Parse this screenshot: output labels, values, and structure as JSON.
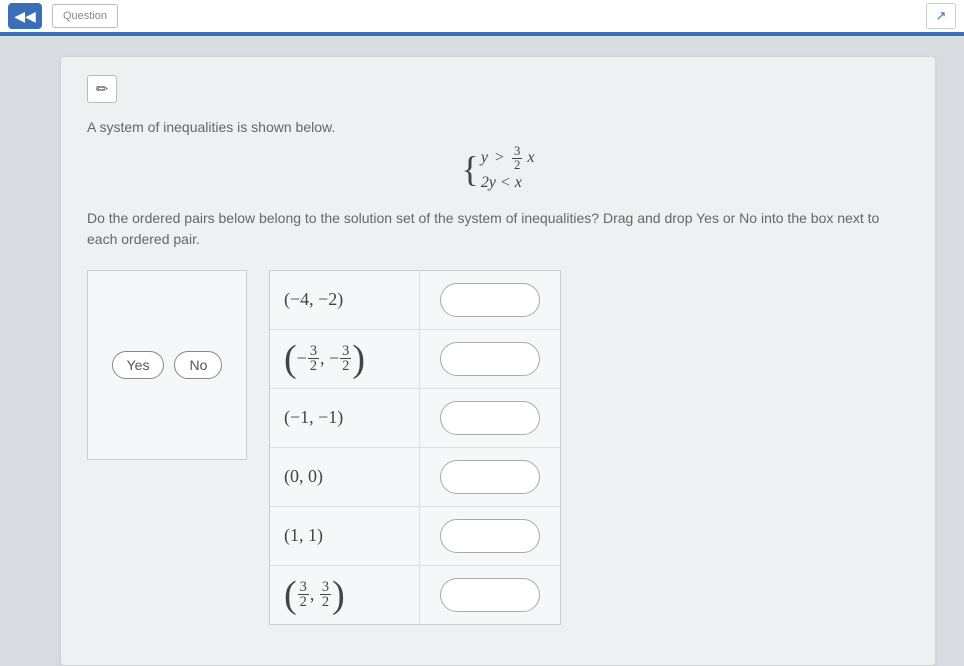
{
  "topbar": {
    "rewind_icon": "◀◀",
    "question_label": "Question",
    "share_icon": "↗"
  },
  "card": {
    "tool_icon": "✏",
    "prompt1": "A system of inequalities is shown below.",
    "system": {
      "line1_lhs": "y",
      "line1_op": ">",
      "line1_frac_num": "3",
      "line1_frac_den": "2",
      "line1_rhs": "x",
      "line2": "2y < x"
    },
    "prompt2": "Do the ordered pairs below belong to the solution set of the system of inequalities? Drag and drop Yes or No into the box next to each ordered pair.",
    "chips": {
      "yes": "Yes",
      "no": "No"
    },
    "pairs": [
      {
        "display": "(−4, −2)",
        "type": "plain"
      },
      {
        "type": "frac",
        "a_sign": "−",
        "a_num": "3",
        "a_den": "2",
        "b_sign": "−",
        "b_num": "3",
        "b_den": "2"
      },
      {
        "display": "(−1, −1)",
        "type": "plain"
      },
      {
        "display": "(0, 0)",
        "type": "plain"
      },
      {
        "display": "(1, 1)",
        "type": "plain"
      },
      {
        "type": "frac",
        "a_sign": "",
        "a_num": "3",
        "a_den": "2",
        "b_sign": "",
        "b_num": "3",
        "b_den": "2"
      }
    ]
  }
}
